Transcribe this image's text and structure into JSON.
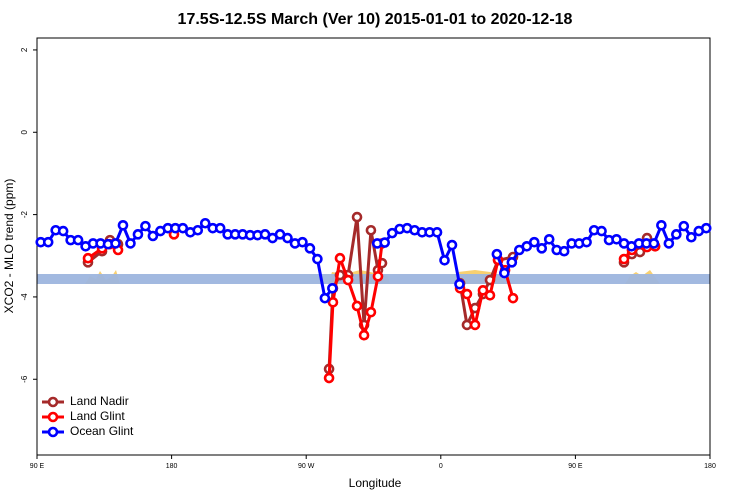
{
  "chart_data": {
    "type": "line",
    "title": "17.5S-12.5S March (Ver 10)   2015-01-01 to 2020-12-18",
    "x_label": "Longitude",
    "y_label": "XCO2 - MLO trend (ppm)",
    "xlim": [
      90,
      540
    ],
    "ylim": [
      -7.84,
      2.29
    ],
    "xticks": [
      {
        "value": 90,
        "label": "90 E"
      },
      {
        "value": 180,
        "label": "180"
      },
      {
        "value": 270,
        "label": "90 W"
      },
      {
        "value": 360,
        "label": "0"
      },
      {
        "value": 450,
        "label": "90 E"
      },
      {
        "value": 540,
        "label": "180"
      }
    ],
    "yticks": [
      2,
      0,
      -2,
      -4,
      -6
    ],
    "legend": "bottom-left",
    "series": [
      {
        "name": "Land Nadir",
        "color": "#a52a2a",
        "x": [
          124.1,
          133.5,
          138.8,
          144.2,
          160,
          285.3,
          287.9,
          292.6,
          298.0,
          304.0,
          308.7,
          313.3,
          318.0,
          320.7,
          350,
          372.9,
          377.5,
          382.9,
          388.2,
          392.9,
          398.3,
          408.3,
          450,
          482.5,
          487.8,
          493.2,
          497.9,
          503.3
        ],
        "values": [
          -3.16,
          -2.89,
          -2.62,
          -2.72,
          null,
          -5.75,
          -3.79,
          -3.47,
          -3.47,
          -2.06,
          -4.68,
          -2.38,
          -3.35,
          -3.18,
          null,
          -3.67,
          -4.68,
          -4.27,
          -3.93,
          -3.59,
          -3.11,
          -3.03,
          null,
          -3.16,
          -2.96,
          -2.91,
          -2.57,
          -2.77
        ]
      },
      {
        "name": "Land Glint",
        "color": "#ff0000",
        "x": [
          124.1,
          133.5,
          138.8,
          144.2,
          160,
          181.6,
          250,
          285.3,
          287.9,
          292.6,
          298.0,
          304.0,
          308.7,
          313.3,
          318.0,
          320.7,
          350,
          372.9,
          377.5,
          382.9,
          388.2,
          392.9,
          398.3,
          403.0,
          408.3,
          450,
          482.5,
          487.8,
          493.2,
          497.9,
          503.3
        ],
        "values": [
          -3.06,
          -2.82,
          -2.72,
          -2.86,
          null,
          -2.48,
          null,
          -5.97,
          -4.13,
          -3.06,
          -3.59,
          -4.22,
          -4.93,
          -4.37,
          -3.5,
          -2.7,
          null,
          -3.79,
          -3.93,
          -4.68,
          -3.84,
          -3.96,
          -3.1,
          -3.35,
          -4.03,
          null,
          -3.08,
          -2.86,
          -2.72,
          -2.79,
          -2.77
        ]
      },
      {
        "name": "Ocean Glint",
        "color": "#0000ff",
        "x": [
          92.5,
          97.5,
          102.5,
          107.5,
          112.5,
          117.5,
          122.5,
          127.5,
          132.5,
          137.5,
          142.5,
          147.5,
          152.5,
          157.5,
          162.5,
          167.5,
          172.5,
          177.5,
          182.5,
          187.5,
          192.5,
          197.5,
          202.5,
          207.5,
          212.5,
          217.5,
          222.5,
          227.5,
          232.5,
          237.5,
          242.5,
          247.5,
          252.5,
          257.5,
          262.5,
          267.5,
          272.5,
          277.5,
          282.5,
          287.5,
          300,
          317.5,
          322.5,
          327.5,
          332.5,
          337.5,
          342.5,
          347.5,
          352.5,
          357.5,
          362.5,
          367.5,
          372.5,
          385,
          397.5,
          402.5,
          407.5,
          412.5,
          417.5,
          422.5,
          427.5,
          432.5,
          437.5,
          442.5,
          447.5,
          452.5,
          457.5,
          462.5,
          467.5,
          472.5,
          477.5,
          482.5,
          487.5,
          492.5,
          497.5,
          502.5,
          507.5,
          512.5,
          517.5,
          522.5,
          527.5,
          532.5,
          537.5
        ],
        "values": [
          -2.67,
          -2.67,
          -2.38,
          -2.4,
          -2.62,
          -2.62,
          -2.77,
          -2.7,
          -2.7,
          -2.72,
          -2.7,
          -2.26,
          -2.7,
          -2.48,
          -2.28,
          -2.52,
          -2.4,
          -2.33,
          -2.33,
          -2.33,
          -2.43,
          -2.38,
          -2.21,
          -2.33,
          -2.33,
          -2.48,
          -2.48,
          -2.48,
          -2.5,
          -2.5,
          -2.48,
          -2.57,
          -2.48,
          -2.57,
          -2.7,
          -2.67,
          -2.82,
          -3.08,
          -4.03,
          -3.79,
          null,
          -2.7,
          -2.68,
          -2.45,
          -2.35,
          -2.33,
          -2.38,
          -2.43,
          -2.43,
          -2.43,
          -3.11,
          -2.74,
          -3.69,
          null,
          -2.96,
          -3.42,
          -3.16,
          -2.86,
          -2.77,
          -2.67,
          -2.82,
          -2.6,
          -2.86,
          -2.89,
          -2.7,
          -2.7,
          -2.67,
          -2.38,
          -2.4,
          -2.62,
          -2.6,
          -2.7,
          -2.77,
          -2.7,
          -2.7,
          -2.7,
          -2.26,
          -2.7,
          -2.48,
          -2.28,
          -2.55,
          -2.4,
          -2.33
        ]
      }
    ]
  }
}
